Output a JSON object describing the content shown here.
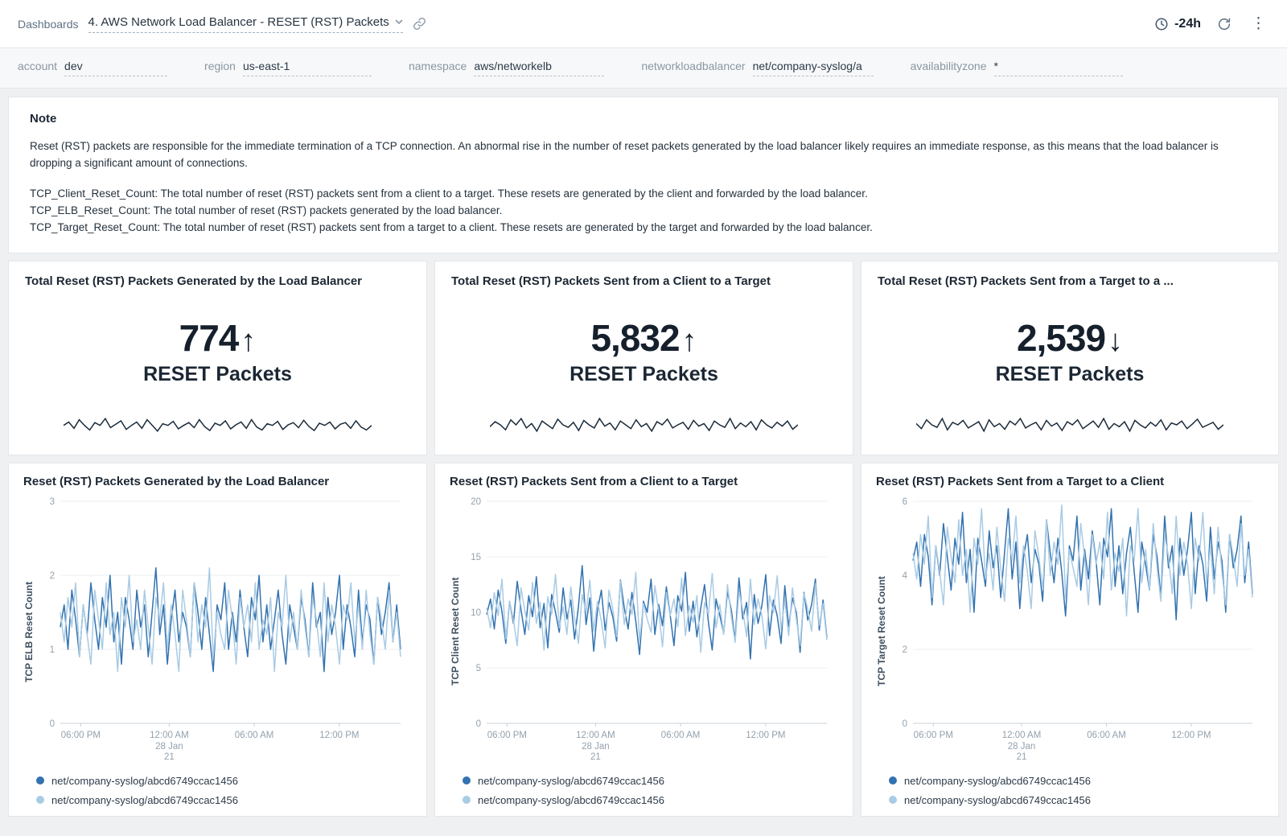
{
  "header": {
    "breadcrumb": "Dashboards",
    "title": "4. AWS Network Load Balancer - RESET (RST) Packets",
    "time_range": "-24h"
  },
  "filters": [
    {
      "label": "account",
      "value": "dev"
    },
    {
      "label": "region",
      "value": "us-east-1"
    },
    {
      "label": "namespace",
      "value": "aws/networkelb"
    },
    {
      "label": "networkloadbalancer",
      "value": "net/company-syslog/a"
    },
    {
      "label": "availabilityzone",
      "value": "*"
    }
  ],
  "note": {
    "title": "Note",
    "paragraph1": "Reset (RST) packets are responsible for the immediate termination of a TCP connection. An abnormal rise in the number of reset packets generated by the load balancer likely requires an immediate response, as this means that the load balancer is dropping a significant amount of connections.",
    "lines": [
      "TCP_Client_Reset_Count: The total number of reset (RST) packets sent from a client to a target. These resets are generated by the client and forwarded by the load balancer.",
      "TCP_ELB_Reset_Count: The total number of reset (RST) packets generated by the load balancer.",
      "TCP_Target_Reset_Count: The total number of reset (RST) packets sent from a target to a client. These resets are generated by the target and forwarded by the load balancer."
    ]
  },
  "stat_panels": [
    {
      "title": "Total Reset (RST) Packets Generated by the Load Balancer",
      "value": "774",
      "arrow": "↑",
      "unit": "RESET Packets",
      "sparkline": [
        1,
        1.06,
        0.95,
        1.1,
        1,
        0.92,
        1.05,
        1,
        1.12,
        0.96,
        1.02,
        1.08,
        0.93,
        1,
        1.06,
        0.95,
        1.1,
        1,
        0.9,
        1.03,
        1,
        1.07,
        0.94,
        1,
        1.05,
        0.96,
        1.1,
        0.98,
        0.91,
        1.04,
        1,
        1.08,
        0.94,
        1.01,
        1.06,
        0.95,
        1.1,
        0.97,
        0.92,
        1.03,
        1,
        1.07,
        0.93,
        1.01,
        1.05,
        0.96,
        1.09,
        0.98,
        0.91,
        1.04,
        1,
        1.06,
        0.94,
        1.02,
        1.05,
        0.95,
        1.08,
        0.97,
        0.92,
        1
      ]
    },
    {
      "title": "Total Reset (RST) Packets Sent from a Client to a Target",
      "value": "5,832",
      "arrow": "↑",
      "unit": "RESET Packets",
      "sparkline": [
        0.97,
        1.05,
        1,
        0.92,
        1.08,
        1,
        1.1,
        0.95,
        1.02,
        0.9,
        1.06,
        1,
        0.94,
        1.09,
        1,
        0.96,
        1.04,
        0.91,
        1.07,
        1,
        0.95,
        1.1,
        0.98,
        1.03,
        0.92,
        1.06,
        1,
        0.94,
        1.08,
        0.97,
        1.02,
        0.9,
        1.05,
        1,
        1.09,
        0.95,
        1,
        1.04,
        0.93,
        1.07,
        0.98,
        1.02,
        0.91,
        1.06,
        1,
        0.96,
        1.1,
        0.94,
        1.03,
        0.97,
        1.05,
        0.92,
        1.08,
        1,
        0.95,
        1.04,
        0.98,
        1.06,
        0.93,
        1
      ]
    },
    {
      "title": "Total Reset (RST) Packets Sent from a Target to a ...",
      "value": "2,539",
      "arrow": "↓",
      "unit": "RESET Packets",
      "sparkline": [
        1.02,
        0.94,
        1.08,
        1,
        0.96,
        1.1,
        0.92,
        1.04,
        1,
        1.07,
        0.95,
        1,
        1.05,
        0.9,
        1.08,
        0.97,
        1.02,
        0.93,
        1.06,
        1,
        1.1,
        0.95,
        1,
        1.04,
        0.92,
        1.07,
        0.98,
        1.03,
        0.91,
        1.05,
        1,
        1.08,
        0.94,
        1,
        1.06,
        0.96,
        1.1,
        0.93,
        1.02,
        0.97,
        1.05,
        0.9,
        1.07,
        1,
        0.95,
        1.04,
        0.98,
        1.08,
        0.92,
        1.03,
        1,
        1.06,
        0.94,
        1.01,
        1.09,
        0.96,
        1,
        1.04,
        0.93,
        1
      ]
    }
  ],
  "chart_data": [
    {
      "type": "line",
      "title": "Reset (RST) Packets Generated by the Load Balancer",
      "xlabel": "",
      "ylabel": "TCP ELB Reset Count",
      "ylim": [
        0,
        3
      ],
      "yticks": [
        0,
        1,
        2,
        3
      ],
      "grid": true,
      "legend_position": "bottom",
      "xticks": [
        {
          "pos": 0.06,
          "label": "06:00 PM"
        },
        {
          "pos": 0.32,
          "label": "12:00 AM",
          "sub": [
            "28 Jan",
            "21"
          ]
        },
        {
          "pos": 0.57,
          "label": "06:00 AM"
        },
        {
          "pos": 0.82,
          "label": "12:00 PM"
        }
      ],
      "series": [
        {
          "name": "net/company-syslog/abcd6749ccac1456",
          "color": "#3272b0",
          "values": [
            1.3,
            1.6,
            1.0,
            1.8,
            1.4,
            0.9,
            1.6,
            1.2,
            1.9,
            1.4,
            1.0,
            1.7,
            1.3,
            2.0,
            1.1,
            1.5,
            0.8,
            1.7,
            1.4,
            1.0,
            1.8,
            1.3,
            1.6,
            0.9,
            1.5,
            2.1,
            1.2,
            1.6,
            0.8,
            1.4,
            1.8,
            1.1,
            1.5,
            1.3,
            0.9,
            1.9,
            1.5,
            1.0,
            1.7,
            1.2,
            0.7,
            1.6,
            1.4,
            1.9,
            1.0,
            1.5,
            1.1,
            1.8,
            1.3,
            0.9,
            1.7,
            1.4,
            2.0,
            1.1,
            1.6,
            1.0,
            1.4,
            1.8,
            1.2,
            0.8,
            1.6,
            1.3,
            1.0,
            1.7,
            1.4,
            0.9,
            1.9,
            1.3,
            1.5,
            0.7,
            1.7,
            1.2,
            1.5,
            2.0,
            1.0,
            1.6,
            1.3,
            0.9,
            1.8,
            1.1,
            1.6,
            1.4,
            0.8,
            1.7,
            1.2,
            1.5,
            1.9,
            1.1,
            1.6,
            1.0
          ]
        },
        {
          "name": "net/company-syslog/abcd6749ccac1456",
          "color": "#a9cbe4",
          "values": [
            1.5,
            1.1,
            1.7,
            1.3,
            1.9,
            0.9,
            1.6,
            1.2,
            0.8,
            1.8,
            1.4,
            1.0,
            1.9,
            1.2,
            1.5,
            0.7,
            1.7,
            1.3,
            2.0,
            1.1,
            1.4,
            1.0,
            1.8,
            1.3,
            0.8,
            1.7,
            1.4,
            1.9,
            1.0,
            1.6,
            1.2,
            0.7,
            1.8,
            1.4,
            0.9,
            1.9,
            1.1,
            1.6,
            1.3,
            2.1,
            0.9,
            1.5,
            1.2,
            1.0,
            1.8,
            1.4,
            0.8,
            1.7,
            1.3,
            1.6,
            1.1,
            1.9,
            1.0,
            1.4,
            1.2,
            1.7,
            0.7,
            1.5,
            1.3,
            2.0,
            1.1,
            1.5,
            1.0,
            1.8,
            1.3,
            0.9,
            1.7,
            1.4,
            0.9,
            1.9,
            1.1,
            1.6,
            1.3,
            0.8,
            1.6,
            1.4,
            1.9,
            1.1,
            1.6,
            1.0,
            1.8,
            1.2,
            0.8,
            1.7,
            1.4,
            1.0,
            1.8,
            1.1,
            1.5,
            0.9
          ]
        }
      ]
    },
    {
      "type": "line",
      "title": "Reset (RST) Packets Sent from a Client to a Target",
      "xlabel": "",
      "ylabel": "TCP Client Reset Count",
      "ylim": [
        0,
        20
      ],
      "yticks": [
        0,
        5,
        10,
        15,
        20
      ],
      "grid": true,
      "legend_position": "bottom",
      "xticks": [
        {
          "pos": 0.06,
          "label": "06:00 PM"
        },
        {
          "pos": 0.32,
          "label": "12:00 AM",
          "sub": [
            "28 Jan",
            "21"
          ]
        },
        {
          "pos": 0.57,
          "label": "06:00 AM"
        },
        {
          "pos": 0.82,
          "label": "12:00 PM"
        }
      ],
      "series": [
        {
          "name": "net/company-syslog/abcd6749ccac1456",
          "color": "#3272b0",
          "values": [
            9.8,
            11.2,
            8.5,
            12.0,
            10.1,
            7.2,
            11.0,
            9.0,
            12.8,
            10.2,
            8.0,
            11.5,
            9.6,
            13.2,
            8.6,
            10.8,
            6.8,
            11.6,
            10.0,
            8.2,
            12.2,
            9.4,
            11.1,
            7.6,
            10.5,
            14.2,
            8.9,
            11.3,
            6.5,
            10.2,
            12.0,
            8.4,
            10.9,
            9.6,
            7.4,
            12.9,
            10.4,
            8.5,
            11.8,
            9.2,
            6.2,
            11.0,
            10.0,
            13.0,
            8.0,
            10.7,
            8.8,
            12.3,
            9.8,
            7.0,
            11.5,
            10.1,
            13.6,
            8.3,
            11.0,
            7.8,
            10.4,
            12.5,
            9.1,
            6.6,
            11.2,
            9.7,
            8.1,
            11.9,
            10.2,
            7.5,
            13.1,
            9.4,
            10.9,
            5.8,
            11.6,
            9.0,
            10.6,
            13.4,
            7.9,
            11.1,
            9.7,
            7.2,
            12.4,
            8.7,
            11.3,
            10.0,
            6.4,
            11.8,
            9.3,
            10.7,
            13.0,
            8.4,
            11.1,
            7.7
          ]
        },
        {
          "name": "net/company-syslog/abcd6749ccac1456",
          "color": "#a9cbe4",
          "values": [
            10.4,
            8.6,
            11.8,
            9.7,
            13.0,
            7.6,
            11.0,
            9.3,
            7.0,
            12.2,
            10.1,
            8.4,
            12.7,
            9.0,
            10.9,
            6.6,
            11.4,
            9.8,
            13.4,
            8.6,
            10.5,
            8.0,
            12.3,
            9.5,
            7.2,
            11.6,
            10.0,
            12.9,
            8.3,
            11.0,
            9.2,
            6.8,
            12.0,
            10.3,
            7.8,
            12.8,
            8.9,
            11.2,
            9.8,
            13.6,
            7.4,
            10.8,
            9.4,
            8.2,
            12.4,
            10.1,
            6.9,
            11.8,
            9.7,
            11.2,
            8.7,
            13.1,
            7.9,
            10.6,
            9.1,
            11.5,
            6.4,
            10.9,
            9.8,
            13.5,
            8.6,
            10.7,
            8.0,
            12.5,
            9.6,
            7.3,
            11.9,
            10.2,
            7.8,
            13.0,
            8.9,
            11.2,
            9.7,
            6.7,
            11.5,
            10.0,
            13.3,
            8.5,
            11.1,
            7.9,
            12.2,
            9.4,
            7.0,
            11.7,
            10.3,
            8.3,
            12.6,
            8.8,
            10.8,
            7.5
          ]
        }
      ]
    },
    {
      "type": "line",
      "title": "Reset (RST) Packets Sent from a Target to a Client",
      "xlabel": "",
      "ylabel": "TCP Target Reset Count",
      "ylim": [
        0,
        6
      ],
      "yticks": [
        0,
        2,
        4,
        6
      ],
      "grid": true,
      "legend_position": "bottom",
      "xticks": [
        {
          "pos": 0.06,
          "label": "06:00 PM"
        },
        {
          "pos": 0.32,
          "label": "12:00 AM",
          "sub": [
            "28 Jan",
            "21"
          ]
        },
        {
          "pos": 0.57,
          "label": "06:00 AM"
        },
        {
          "pos": 0.82,
          "label": "12:00 PM"
        }
      ],
      "series": [
        {
          "name": "net/company-syslog/abcd6749ccac1456",
          "color": "#3272b0",
          "values": [
            4.4,
            4.9,
            3.7,
            5.1,
            4.5,
            3.2,
            4.8,
            4.0,
            5.4,
            4.5,
            3.6,
            5.0,
            4.3,
            5.7,
            3.8,
            4.7,
            3.0,
            5.0,
            4.4,
            3.7,
            5.2,
            4.2,
            4.8,
            3.4,
            4.6,
            5.8,
            3.9,
            4.9,
            3.1,
            4.5,
            5.1,
            3.8,
            4.7,
            4.3,
            3.3,
            5.5,
            4.6,
            3.8,
            5.0,
            4.1,
            2.9,
            4.8,
            4.4,
            5.6,
            3.6,
            4.7,
            3.9,
            5.2,
            4.4,
            3.2,
            5.0,
            4.5,
            5.8,
            3.7,
            4.8,
            3.5,
            4.6,
            5.3,
            4.1,
            3.0,
            4.9,
            4.3,
            3.6,
            5.1,
            4.5,
            3.4,
            5.6,
            4.2,
            4.8,
            2.8,
            5.0,
            4.0,
            4.7,
            5.7,
            3.5,
            4.8,
            4.3,
            3.3,
            5.3,
            3.9,
            4.9,
            4.4,
            3.0,
            5.1,
            4.2,
            4.7,
            5.6,
            3.8,
            4.9,
            3.5
          ]
        },
        {
          "name": "net/company-syslog/abcd6749ccac1456",
          "color": "#a9cbe4",
          "values": [
            4.6,
            3.9,
            5.1,
            4.3,
            5.6,
            3.4,
            4.8,
            4.1,
            3.2,
            5.3,
            4.5,
            3.8,
            5.5,
            4.0,
            4.7,
            3.0,
            5.0,
            4.3,
            5.8,
            3.9,
            4.6,
            3.6,
            5.3,
            4.2,
            3.3,
            5.0,
            4.4,
            5.6,
            3.8,
            4.8,
            4.1,
            3.1,
            5.2,
            4.5,
            3.6,
            5.5,
            4.0,
            4.9,
            4.3,
            5.9,
            3.4,
            4.7,
            4.2,
            3.7,
            5.4,
            4.5,
            3.2,
            5.1,
            4.3,
            4.9,
            3.9,
            5.7,
            3.6,
            4.6,
            4.1,
            5.0,
            2.9,
            4.8,
            4.4,
            5.8,
            3.8,
            4.7,
            3.6,
            5.4,
            4.2,
            3.3,
            5.1,
            4.5,
            3.5,
            5.6,
            4.0,
            4.9,
            4.3,
            3.1,
            5.0,
            4.4,
            5.7,
            3.8,
            4.8,
            3.5,
            5.3,
            4.1,
            3.2,
            5.1,
            4.5,
            3.7,
            5.4,
            4.0,
            4.7,
            3.4
          ]
        }
      ]
    }
  ],
  "colors": {
    "series_dark": "#3272b0",
    "series_light": "#a9cbe4",
    "spark": "#1b2b3a",
    "accent_text": "#16202c"
  }
}
